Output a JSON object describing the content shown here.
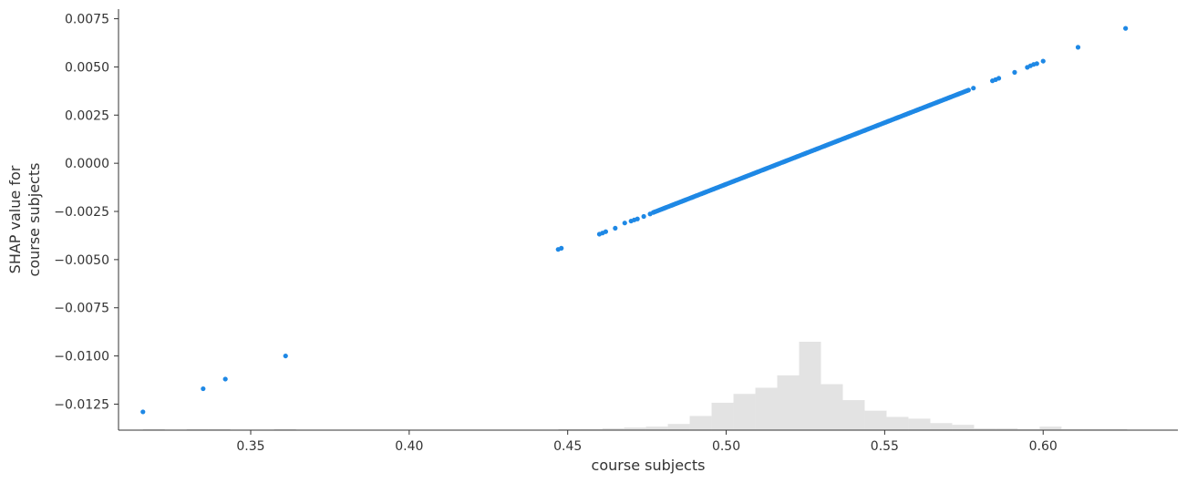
{
  "chart_data": {
    "type": "scatter",
    "title": "",
    "xlabel": "course subjects",
    "ylabel_lines": [
      "SHAP value for",
      "course subjects"
    ],
    "xlim": [
      0.3083,
      0.6425
    ],
    "ylim": [
      -0.01385,
      0.008
    ],
    "x_ticks": [
      0.35,
      0.4,
      0.45,
      0.5,
      0.55,
      0.6
    ],
    "x_tick_labels": [
      "0.35",
      "0.40",
      "0.45",
      "0.50",
      "0.55",
      "0.60"
    ],
    "y_ticks": [
      0.0075,
      0.005,
      0.0025,
      0.0,
      -0.0025,
      -0.005,
      -0.0075,
      -0.01,
      -0.0125
    ],
    "y_tick_labels": [
      "0.0075",
      "0.0050",
      "0.0025",
      "0.0000",
      "−0.0025",
      "−0.0050",
      "−0.0075",
      "−0.0100",
      "−0.0125"
    ],
    "grid": false,
    "point_color": "#1E88E5",
    "histogram_color": "#E3E3E3",
    "outlier_points": [
      {
        "x": 0.316,
        "y": -0.0129
      },
      {
        "x": 0.335,
        "y": -0.0117
      },
      {
        "x": 0.342,
        "y": -0.0112
      },
      {
        "x": 0.361,
        "y": -0.01
      }
    ],
    "trend": {
      "x_start": 0.4465,
      "y_start": -0.0045,
      "x_end": 0.6,
      "y_end": 0.0053
    },
    "sparse_points": [
      {
        "x": 0.447,
        "y": -0.00447
      },
      {
        "x": 0.448,
        "y": -0.00441
      },
      {
        "x": 0.46,
        "y": -0.00368
      },
      {
        "x": 0.461,
        "y": -0.00362
      },
      {
        "x": 0.462,
        "y": -0.00355
      },
      {
        "x": 0.465,
        "y": -0.00337
      },
      {
        "x": 0.468,
        "y": -0.0031
      },
      {
        "x": 0.47,
        "y": -0.003
      },
      {
        "x": 0.471,
        "y": -0.00294
      },
      {
        "x": 0.472,
        "y": -0.00289
      },
      {
        "x": 0.474,
        "y": -0.00276
      },
      {
        "x": 0.476,
        "y": -0.00263
      },
      {
        "x": 0.578,
        "y": 0.0039
      },
      {
        "x": 0.584,
        "y": 0.00428
      },
      {
        "x": 0.585,
        "y": 0.00434
      },
      {
        "x": 0.586,
        "y": 0.00441
      },
      {
        "x": 0.591,
        "y": 0.00472
      },
      {
        "x": 0.595,
        "y": 0.00498
      },
      {
        "x": 0.596,
        "y": 0.00506
      },
      {
        "x": 0.597,
        "y": 0.00513
      },
      {
        "x": 0.598,
        "y": 0.00517
      },
      {
        "x": 0.6,
        "y": 0.0053
      },
      {
        "x": 0.611,
        "y": 0.00602
      },
      {
        "x": 0.626,
        "y": 0.007
      }
    ],
    "histogram": {
      "bin_edges": [
        0.316,
        0.3229,
        0.3298,
        0.3367,
        0.3436,
        0.3505,
        0.3574,
        0.3643,
        0.3712,
        0.3781,
        0.385,
        0.3919,
        0.3988,
        0.4057,
        0.4126,
        0.4195,
        0.4264,
        0.4333,
        0.4402,
        0.4471,
        0.454,
        0.4609,
        0.4678,
        0.4747,
        0.4816,
        0.4885,
        0.4954,
        0.5023,
        0.5092,
        0.5161,
        0.523,
        0.5299,
        0.5368,
        0.5437,
        0.5506,
        0.5575,
        0.5644,
        0.5713,
        0.5782,
        0.5851,
        0.592,
        0.5989,
        0.6058,
        0.6127,
        0.6196,
        0.6265
      ],
      "relative_heights": [
        0.01,
        0.0,
        0.01,
        0.01,
        0.0,
        0.0,
        0.01,
        0.0,
        0.0,
        0.0,
        0.0,
        0.0,
        0.0,
        0.0,
        0.0,
        0.0,
        0.0,
        0.0,
        0.0,
        0.01,
        0.01,
        0.02,
        0.03,
        0.04,
        0.07,
        0.16,
        0.31,
        0.41,
        0.48,
        0.62,
        1.0,
        0.52,
        0.34,
        0.22,
        0.15,
        0.13,
        0.08,
        0.06,
        0.02,
        0.02,
        0.01,
        0.04,
        0.01,
        0.01,
        0.01
      ]
    }
  }
}
